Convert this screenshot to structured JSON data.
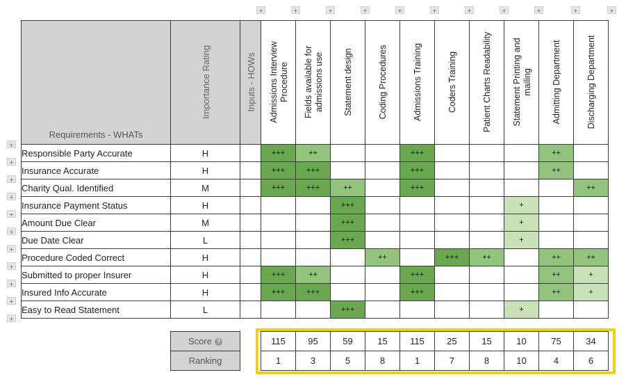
{
  "headers": {
    "requirements": "Requirements - WHATs",
    "importance": "Importance Rating",
    "inputs": "Inputs - HOWs"
  },
  "hows": [
    {
      "line1": "Admissions Interview",
      "line2": "Procedure"
    },
    {
      "line1": "Fields available for",
      "line2": "admissions use"
    },
    {
      "line1": "Statement design",
      "line2": ""
    },
    {
      "line1": "Coding Procedures",
      "line2": ""
    },
    {
      "line1": "Admissions Training",
      "line2": ""
    },
    {
      "line1": "Coders Training",
      "line2": ""
    },
    {
      "line1": "Patient Charts Readability",
      "line2": ""
    },
    {
      "line1": "Statement Printing and",
      "line2": "mailing"
    },
    {
      "line1": "Admitting Department",
      "line2": ""
    },
    {
      "line1": "Discharging Department",
      "line2": ""
    }
  ],
  "rows": [
    {
      "name": "Responsible Party Accurate",
      "imp": "H",
      "cells": [
        "+++",
        "++",
        "",
        "",
        "+++",
        "",
        "",
        "",
        "++",
        ""
      ]
    },
    {
      "name": "Insurance Accurate",
      "imp": "H",
      "cells": [
        "+++",
        "+++",
        "",
        "",
        "+++",
        "",
        "",
        "",
        "++",
        ""
      ]
    },
    {
      "name": "Charity Qual. Identified",
      "imp": "M",
      "cells": [
        "+++",
        "+++",
        "++",
        "",
        "+++",
        "",
        "",
        "",
        "",
        "++"
      ]
    },
    {
      "name": "Insurance Payment Status",
      "imp": "H",
      "cells": [
        "",
        "",
        "+++",
        "",
        "",
        "",
        "",
        "+",
        "",
        ""
      ]
    },
    {
      "name": "Amount Due Clear",
      "imp": "M",
      "cells": [
        "",
        "",
        "+++",
        "",
        "",
        "",
        "",
        "+",
        "",
        ""
      ]
    },
    {
      "name": "Due Date Clear",
      "imp": "L",
      "cells": [
        "",
        "",
        "+++",
        "",
        "",
        "",
        "",
        "+",
        "",
        ""
      ]
    },
    {
      "name": "Procedure Coded Correct",
      "imp": "H",
      "cells": [
        "",
        "",
        "",
        "++",
        "",
        "+++",
        "++",
        "",
        "++",
        "++"
      ]
    },
    {
      "name": "Submitted to proper Insurer",
      "imp": "H",
      "cells": [
        "+++",
        "++",
        "",
        "",
        "+++",
        "",
        "",
        "",
        "++",
        "+"
      ]
    },
    {
      "name": "Insured Info Accurate",
      "imp": "H",
      "cells": [
        "+++",
        "+++",
        "",
        "",
        "+++",
        "",
        "",
        "",
        "++",
        "+"
      ]
    },
    {
      "name": "Easy to Read Statement",
      "imp": "L",
      "cells": [
        "",
        "",
        "+++",
        "",
        "",
        "",
        "",
        "+",
        "",
        ""
      ]
    }
  ],
  "score": {
    "label": "Score",
    "values": [
      "115",
      "95",
      "59",
      "15",
      "115",
      "25",
      "15",
      "10",
      "75",
      "34"
    ]
  },
  "ranking": {
    "label": "Ranking",
    "values": [
      "1",
      "3",
      "5",
      "8",
      "1",
      "7",
      "8",
      "10",
      "4",
      "6"
    ]
  },
  "add_button_glyph": "+",
  "help_glyph": "?",
  "colors": {
    "strong": "#6aa84f",
    "medium": "#93c47d",
    "weak": "#c9e2b8",
    "header_grey": "#d3d3d3",
    "highlight": "#f0cf1a"
  }
}
